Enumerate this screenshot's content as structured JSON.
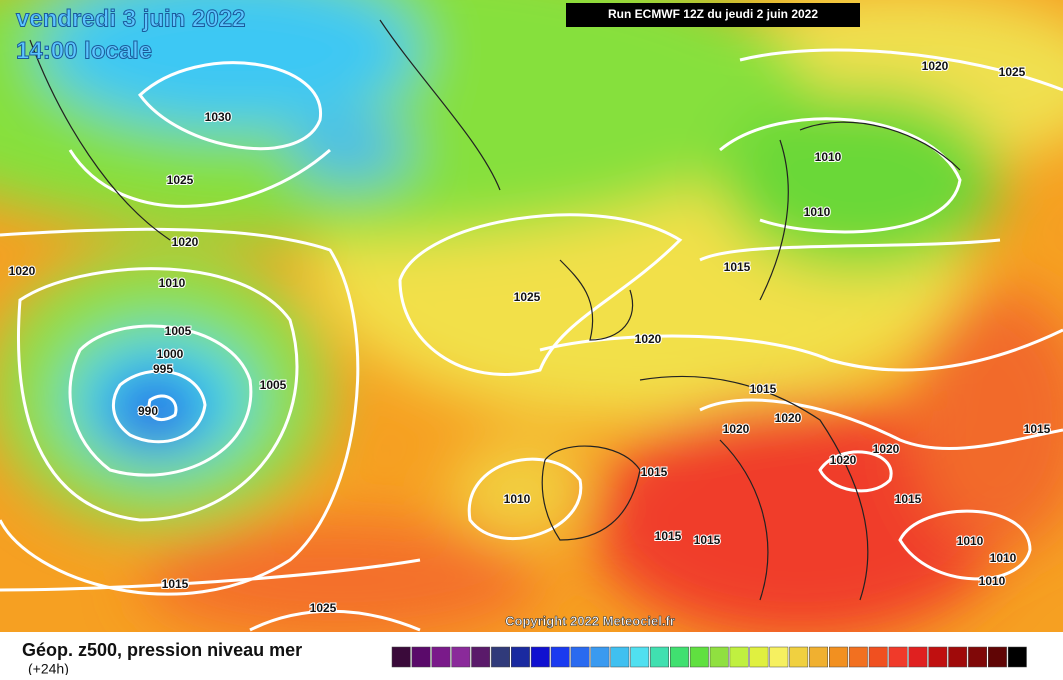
{
  "header": {
    "date": "vendredi 3 juin 2022",
    "time": "14:00 locale",
    "run": "Run ECMWF 12Z du jeudi 2 juin 2022"
  },
  "map": {
    "isobar_labels": [
      "1030",
      "1025",
      "1020",
      "1020",
      "1010",
      "1005",
      "1000",
      "995",
      "990",
      "1005",
      "1025",
      "1020",
      "1010",
      "1010",
      "1015",
      "1020",
      "1025",
      "1015",
      "1020",
      "1020",
      "1020",
      "1020",
      "1015",
      "1015",
      "1010",
      "1015",
      "1015",
      "1015",
      "1010",
      "1010",
      "1010",
      "1015",
      "1025"
    ],
    "copyright": "Copyright 2022 Meteociel.fr"
  },
  "footer": {
    "title": "Géop. z500, pression niveau mer",
    "subtitle": "(+24h)"
  }
}
